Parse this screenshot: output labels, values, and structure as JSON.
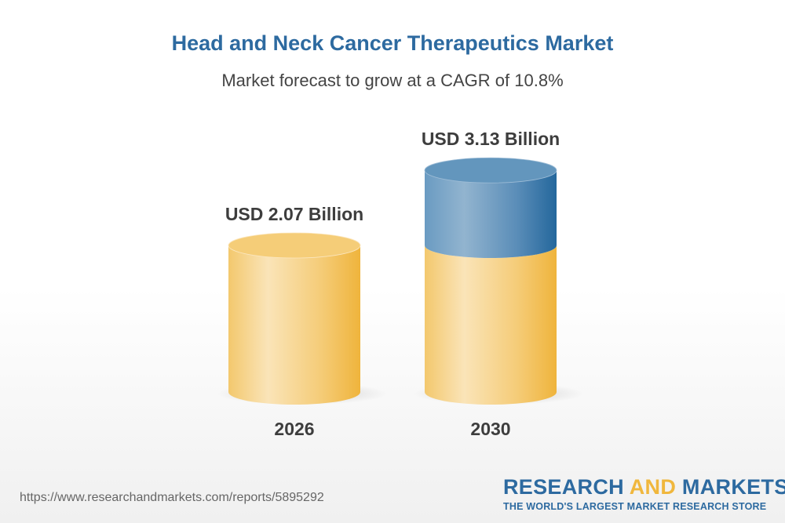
{
  "chart_data": {
    "type": "bar",
    "style": "3d-cylinder",
    "title": "Head and Neck Cancer Therapeutics Market",
    "subtitle": "Market forecast to grow at a CAGR of 10.8%",
    "categories": [
      "2026",
      "2030"
    ],
    "values": [
      2.07,
      3.13
    ],
    "data_labels": [
      "USD 2.07 Billion",
      "USD 3.13 Billion"
    ],
    "unit": "USD Billion",
    "grid": false,
    "colors": {
      "base": "#f2c163",
      "growth": "#2d6aa0"
    }
  },
  "footer": {
    "url": "https://www.researchandmarkets.com/reports/5895292",
    "logo_part1": "RESEARCH ",
    "logo_part2": "AND",
    "logo_part3": " MARKETS",
    "tagline": "THE WORLD'S LARGEST MARKET RESEARCH STORE"
  }
}
